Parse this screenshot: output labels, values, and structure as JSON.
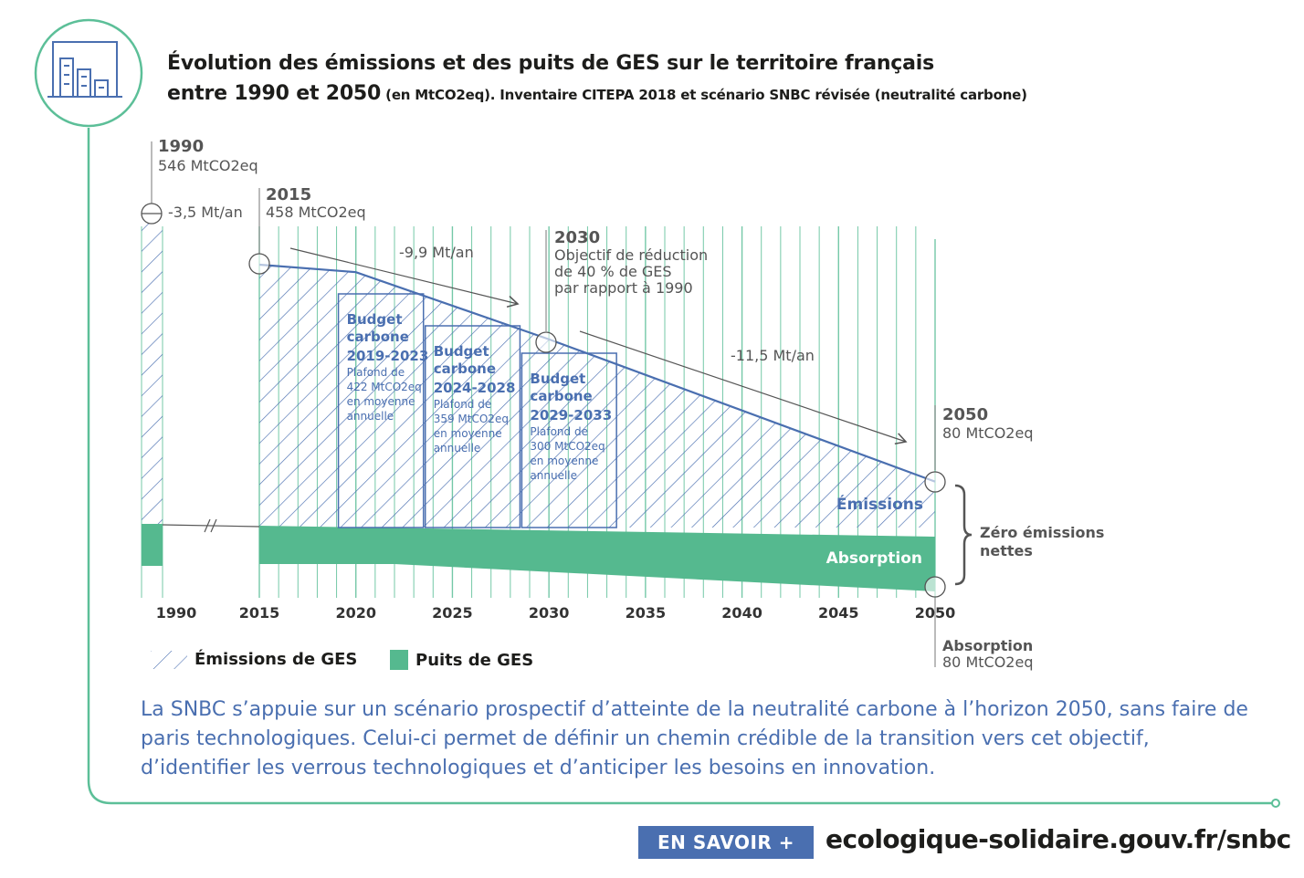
{
  "header": {
    "title_line1": "Évolution des émissions et des puits de GES sur le territoire français",
    "title_line2_main": "entre 1990 et 2050",
    "title_line2_small": " (en MtCO2eq). Inventaire CITEPA 2018 et scénario SNBC révisée (neutralité carbone)",
    "icon": "bar-chart-building-icon"
  },
  "colors": {
    "frame": "#5cbf98",
    "emissions_line": "#4a6fb0",
    "hatch": "#4a6fb0",
    "absorption": "#55b98f",
    "grid": "#5cbf98",
    "text_blue": "#4a6fb0"
  },
  "chart_data": {
    "type": "area",
    "x_ticks": [
      "1990",
      "2015",
      "2020",
      "2025",
      "2030",
      "2035",
      "2040",
      "2045",
      "2050"
    ],
    "series": [
      {
        "name": "Émissions de GES",
        "x": [
          1990,
          2015,
          2020,
          2030,
          2050
        ],
        "y": [
          546,
          458,
          445,
          328,
          80
        ]
      },
      {
        "name": "Puits de GES",
        "x": [
          1990,
          2015,
          2050
        ],
        "y": [
          -40,
          -40,
          -80
        ]
      }
    ],
    "points": [
      {
        "year": "1990",
        "value": "546 MtCO2eq",
        "rate": "-3,5 Mt/an"
      },
      {
        "year": "2015",
        "value": "458 MtCO2eq"
      },
      {
        "year": "2030",
        "line1": "Objectif de réduction",
        "line2": "de 40 % de GES",
        "line3": "par rapport à 1990"
      },
      {
        "year": "2050",
        "value": "80 MtCO2eq"
      }
    ],
    "rates": {
      "r1": "-9,9 Mt/an",
      "r2": "-11,5 Mt/an"
    },
    "budgets": [
      {
        "l1": "Budget",
        "l2": "carbone",
        "period": "2019-2023",
        "p1": "Plafond de",
        "p2": "422 MtCO2eq",
        "p3": "en moyenne",
        "p4": "annuelle",
        "value": 422
      },
      {
        "l1": "Budget",
        "l2": "carbone",
        "period": "2024-2028",
        "p1": "Plafond de",
        "p2": "359 MtCO2eq",
        "p3": "en moyenne",
        "p4": "annuelle",
        "value": 359
      },
      {
        "l1": "Budget",
        "l2": "carbone",
        "period": "2029-2033",
        "p1": "Plafond de",
        "p2": "300 MtCO2eq",
        "p3": "en moyenne",
        "p4": "annuelle",
        "value": 300
      }
    ],
    "labels": {
      "emissions": "Émissions",
      "absorption": "Absorption",
      "zero_l1": "Zéro émissions",
      "zero_l2": "nettes",
      "abs_2050_l1": "Absorption",
      "abs_2050_l2": "80 MtCO2eq"
    }
  },
  "legend": {
    "emissions": "Émissions de GES",
    "puits": "Puits de GES"
  },
  "paragraph": "La SNBC s’appuie sur un scénario prospectif d’atteinte de la neutralité carbone à l’horizon 2050, sans faire de paris technologiques. Celui-ci permet de définir un chemin crédible de la transition vers cet objectif, d’identifier les verrous technologiques et d’anticiper les besoins en innovation.",
  "footer": {
    "button": "EN SAVOIR +",
    "url": "ecologique-solidaire.gouv.fr/snbc"
  }
}
